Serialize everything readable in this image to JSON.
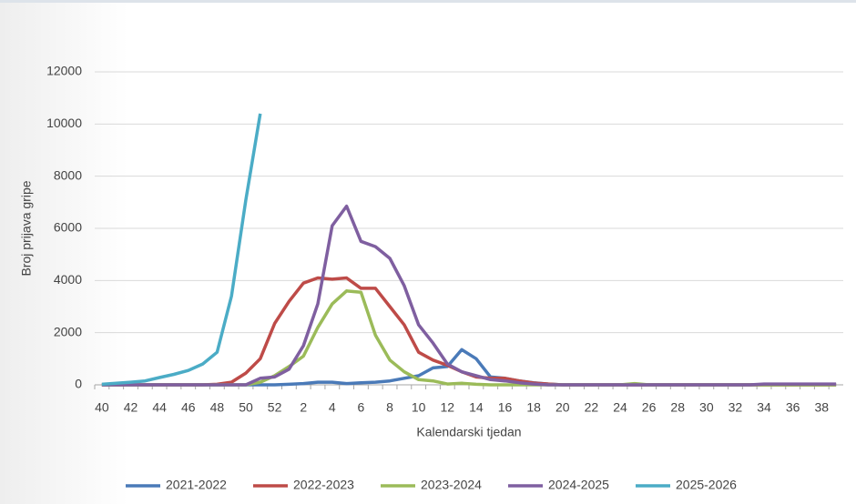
{
  "chart_data": {
    "type": "line",
    "y_label": "Broj prijava gripe",
    "x_label": "Kalendarski tjedan",
    "categories": [
      "40",
      null,
      "42",
      null,
      "44",
      null,
      "46",
      null,
      "48",
      null,
      "50",
      null,
      "52",
      null,
      "2",
      null,
      "4",
      null,
      "6",
      null,
      "8",
      null,
      "10",
      null,
      "12",
      null,
      "14",
      null,
      "16",
      null,
      "18",
      null,
      "20",
      null,
      "22",
      null,
      "24",
      null,
      "26",
      null,
      "28",
      null,
      "30",
      null,
      "32",
      null,
      "34",
      null,
      "36",
      null,
      "38",
      null
    ],
    "ylim": [
      0,
      12000
    ],
    "yticks": [
      0,
      2000,
      4000,
      6000,
      8000,
      10000,
      12000
    ],
    "grid": true,
    "legend": "bottom",
    "series": [
      {
        "name": "2021-2022",
        "color": "#4a7ab8",
        "values": [
          0,
          0,
          0,
          0,
          0,
          0,
          0,
          0,
          0,
          0,
          0,
          0,
          0,
          20,
          50,
          100,
          100,
          50,
          80,
          100,
          150,
          250,
          350,
          650,
          700,
          1350,
          1000,
          300,
          250,
          150,
          80,
          30,
          0,
          0,
          0,
          0,
          0,
          0,
          0,
          0,
          0,
          0,
          0,
          0,
          0,
          0,
          0,
          0,
          0,
          0,
          0,
          0
        ]
      },
      {
        "name": "2022-2023",
        "color": "#be4b48",
        "values": [
          0,
          0,
          0,
          0,
          0,
          0,
          0,
          0,
          20,
          100,
          450,
          1000,
          2350,
          3200,
          3900,
          4100,
          4050,
          4100,
          3700,
          3700,
          3000,
          2300,
          1250,
          950,
          750,
          500,
          300,
          250,
          250,
          150,
          70,
          30,
          0,
          0,
          0,
          0,
          0,
          0,
          0,
          0,
          0,
          0,
          0,
          0,
          0,
          0,
          0,
          0,
          0,
          0,
          0,
          0
        ]
      },
      {
        "name": "2023-2024",
        "color": "#9bbb59",
        "values": [
          0,
          0,
          0,
          0,
          0,
          0,
          0,
          0,
          0,
          0,
          0,
          100,
          350,
          700,
          1100,
          2200,
          3100,
          3600,
          3550,
          1900,
          950,
          500,
          200,
          150,
          30,
          60,
          20,
          0,
          0,
          0,
          0,
          0,
          0,
          0,
          0,
          0,
          0,
          50,
          0,
          0,
          0,
          0,
          0,
          0,
          0,
          0,
          0,
          0,
          0,
          0,
          0,
          0
        ]
      },
      {
        "name": "2024-2025",
        "color": "#7f5fa0",
        "values": [
          0,
          0,
          0,
          0,
          0,
          0,
          0,
          0,
          0,
          0,
          0,
          250,
          300,
          600,
          1500,
          3100,
          6100,
          6850,
          5500,
          5300,
          4850,
          3800,
          2300,
          1600,
          800,
          500,
          350,
          200,
          150,
          80,
          30,
          0,
          0,
          0,
          0,
          0,
          0,
          0,
          0,
          0,
          0,
          0,
          0,
          0,
          0,
          0,
          30,
          30,
          30,
          30,
          30,
          30
        ]
      },
      {
        "name": "2025-2026",
        "color": "#4bacc6",
        "values": [
          20,
          60,
          100,
          150,
          280,
          400,
          550,
          800,
          1250,
          3400,
          7100,
          10400,
          null,
          null,
          null,
          null,
          null,
          null,
          null,
          null,
          null,
          null,
          null,
          null,
          null,
          null,
          null,
          null,
          null,
          null,
          null,
          null,
          null,
          null,
          null,
          null,
          null,
          null,
          null,
          null,
          null,
          null,
          null,
          null,
          null,
          null,
          null,
          null,
          null,
          null,
          null,
          null
        ]
      }
    ]
  }
}
